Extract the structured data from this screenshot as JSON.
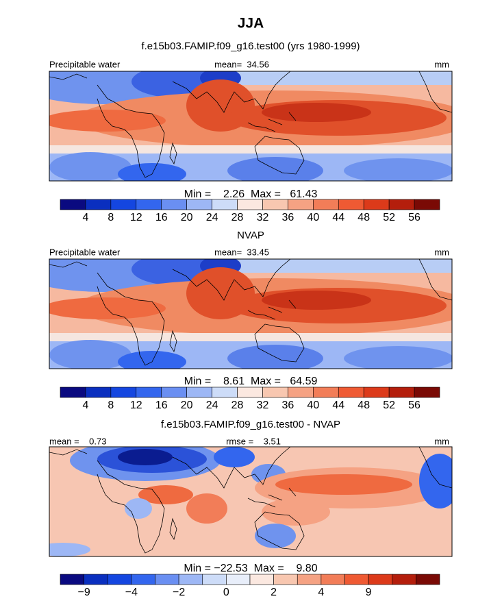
{
  "title": "JJA",
  "panels": [
    {
      "title": "f.e15b03.FAMIP.f09_g16.test00 (yrs 1980-1999)",
      "left_label": "Precipitable water",
      "center_label": "mean=  34.56",
      "right_label": "mm",
      "stats": "Min =    2.26  Max =   61.43",
      "colorbar": {
        "colors": [
          "#0a0a80",
          "#0a2fbf",
          "#1446e0",
          "#3366ee",
          "#6a8ff2",
          "#9db7f5",
          "#cddcf8",
          "#fbe8e0",
          "#f8c7b0",
          "#f5a283",
          "#f27d58",
          "#ef5a33",
          "#dc3a1a",
          "#b41e0c",
          "#7a0a05"
        ],
        "labels": [
          "4",
          "8",
          "12",
          "16",
          "20",
          "24",
          "28",
          "32",
          "36",
          "40",
          "44",
          "48",
          "52",
          "56"
        ]
      }
    },
    {
      "title": "NVAP",
      "left_label": "Precipitable water",
      "center_label": "mean=  33.45",
      "right_label": "mm",
      "stats": "Min =    8.61  Max =   64.59",
      "colorbar": {
        "colors": [
          "#0a0a80",
          "#0a2fbf",
          "#1446e0",
          "#3366ee",
          "#6a8ff2",
          "#9db7f5",
          "#cddcf8",
          "#fbe8e0",
          "#f8c7b0",
          "#f5a283",
          "#f27d58",
          "#ef5a33",
          "#dc3a1a",
          "#b41e0c",
          "#7a0a05"
        ],
        "labels": [
          "4",
          "8",
          "12",
          "16",
          "20",
          "24",
          "28",
          "32",
          "36",
          "40",
          "44",
          "48",
          "52",
          "56"
        ]
      }
    },
    {
      "title": "f.e15b03.FAMIP.f09_g16.test00 - NVAP",
      "left_label": "mean =    0.73",
      "center_label": "rmse =    3.51",
      "right_label": "mm",
      "stats": "Min = −22.53  Max =    9.80",
      "colorbar": {
        "colors": [
          "#0a0a80",
          "#0a2fbf",
          "#1446e0",
          "#3366ee",
          "#6a8ff2",
          "#9db7f5",
          "#cddcf8",
          "#e8eefa",
          "#fbe8e0",
          "#f8c7b0",
          "#f5a283",
          "#f27d58",
          "#ef5a33",
          "#dc3a1a",
          "#b41e0c",
          "#7a0a05"
        ],
        "labels": [
          "−9",
          null,
          "−4",
          null,
          "−2",
          null,
          "0",
          null,
          "2",
          null,
          "4",
          null,
          "9",
          null,
          null
        ]
      }
    }
  ]
}
